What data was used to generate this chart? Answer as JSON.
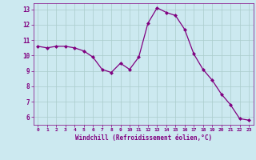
{
  "x": [
    0,
    1,
    2,
    3,
    4,
    5,
    6,
    7,
    8,
    9,
    10,
    11,
    12,
    13,
    14,
    15,
    16,
    17,
    18,
    19,
    20,
    21,
    22,
    23
  ],
  "y": [
    10.6,
    10.5,
    10.6,
    10.6,
    10.5,
    10.3,
    9.9,
    9.1,
    8.9,
    9.5,
    9.1,
    9.9,
    12.1,
    13.1,
    12.8,
    12.6,
    11.7,
    10.1,
    9.1,
    8.4,
    7.5,
    6.8,
    5.9,
    5.8
  ],
  "line_color": "#800080",
  "marker": "D",
  "marker_size": 2,
  "bg_color": "#cce9f0",
  "grid_color": "#aacccc",
  "xlabel": "Windchill (Refroidissement éolien,°C)",
  "xlabel_color": "#800080",
  "tick_color": "#800080",
  "spine_color": "#800080",
  "ylim": [
    5.5,
    13.4
  ],
  "xlim": [
    -0.5,
    23.5
  ],
  "yticks": [
    6,
    7,
    8,
    9,
    10,
    11,
    12,
    13
  ],
  "xticks": [
    0,
    1,
    2,
    3,
    4,
    5,
    6,
    7,
    8,
    9,
    10,
    11,
    12,
    13,
    14,
    15,
    16,
    17,
    18,
    19,
    20,
    21,
    22,
    23
  ]
}
